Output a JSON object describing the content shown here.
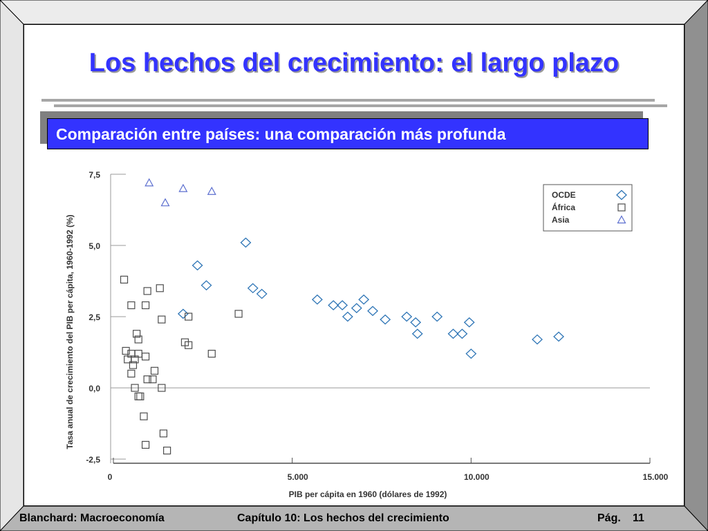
{
  "slide": {
    "title": "Los hechos del crecimiento: el largo plazo",
    "subtitle": "Comparación entre países: una comparación más profunda"
  },
  "footer": {
    "left": "Blanchard: Macroeconomía",
    "center": "Capítulo 10: Los hechos del crecimiento",
    "page_label": "Pág.",
    "page_number": "11"
  },
  "colors": {
    "title": "#3333ff",
    "band": "#3333ff",
    "ocde": "#2e75b6",
    "africa": "#4d4d4d",
    "asia": "#5b6ecf"
  },
  "chart_data": {
    "type": "scatter",
    "title": "",
    "xlabel": "PIB per cápita en 1960 (dólares de 1992)",
    "ylabel": "Tasa anual de crecimiento del PIB per cápita, 1960-1992 (%)",
    "xlim": [
      0,
      15000
    ],
    "ylim": [
      -2.5,
      7.5
    ],
    "x_ticks": [
      0,
      5000,
      10000,
      15000
    ],
    "x_tick_labels": [
      "0",
      "5.000",
      "10.000",
      "15.000"
    ],
    "y_ticks": [
      -2.5,
      0,
      2.5,
      5,
      7.5
    ],
    "y_tick_labels": [
      "-2,5",
      "0,0",
      "2,5",
      "5,0",
      "7,5"
    ],
    "legend_position": "top-right",
    "series": [
      {
        "name": "OCDE",
        "marker": "diamond",
        "points": [
          [
            3700,
            5.1
          ],
          [
            2350,
            4.3
          ],
          [
            2600,
            3.6
          ],
          [
            3900,
            3.5
          ],
          [
            4150,
            3.3
          ],
          [
            1950,
            2.6
          ],
          [
            5700,
            3.1
          ],
          [
            6150,
            2.9
          ],
          [
            6400,
            2.9
          ],
          [
            6550,
            2.5
          ],
          [
            6800,
            2.8
          ],
          [
            7000,
            3.1
          ],
          [
            7250,
            2.7
          ],
          [
            7600,
            2.4
          ],
          [
            8200,
            2.5
          ],
          [
            8450,
            2.3
          ],
          [
            8500,
            1.9
          ],
          [
            9050,
            2.5
          ],
          [
            9500,
            1.9
          ],
          [
            9750,
            1.9
          ],
          [
            9950,
            2.3
          ],
          [
            10000,
            1.2
          ],
          [
            11850,
            1.7
          ],
          [
            12450,
            1.8
          ]
        ]
      },
      {
        "name": "África",
        "marker": "square",
        "points": [
          [
            300,
            3.8
          ],
          [
            500,
            2.9
          ],
          [
            950,
            3.4
          ],
          [
            900,
            2.9
          ],
          [
            1300,
            3.5
          ],
          [
            1350,
            2.4
          ],
          [
            2100,
            2.5
          ],
          [
            650,
            1.9
          ],
          [
            700,
            1.7
          ],
          [
            350,
            1.3
          ],
          [
            500,
            1.2
          ],
          [
            700,
            1.2
          ],
          [
            900,
            1.1
          ],
          [
            400,
            1.0
          ],
          [
            600,
            1.0
          ],
          [
            550,
            0.8
          ],
          [
            500,
            0.5
          ],
          [
            1150,
            0.6
          ],
          [
            950,
            0.3
          ],
          [
            1100,
            0.3
          ],
          [
            1350,
            0.0
          ],
          [
            600,
            0.0
          ],
          [
            700,
            -0.3
          ],
          [
            750,
            -0.3
          ],
          [
            850,
            -1.0
          ],
          [
            1400,
            -1.6
          ],
          [
            900,
            -2.0
          ],
          [
            1500,
            -2.2
          ],
          [
            2000,
            1.6
          ],
          [
            2100,
            1.5
          ],
          [
            2750,
            1.2
          ],
          [
            3500,
            2.6
          ]
        ]
      },
      {
        "name": "Asia",
        "marker": "triangle",
        "points": [
          [
            1000,
            7.2
          ],
          [
            1950,
            7.0
          ],
          [
            2750,
            6.9
          ],
          [
            1450,
            6.5
          ]
        ]
      }
    ]
  }
}
